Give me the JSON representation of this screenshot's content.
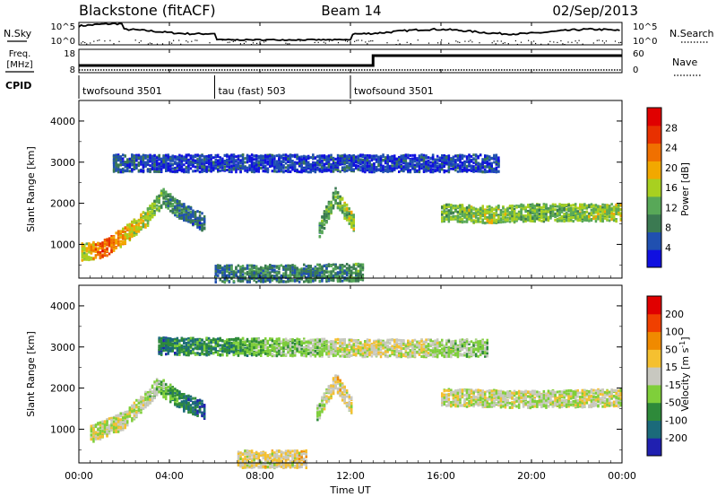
{
  "header": {
    "radar": "Blackstone (fitACF)",
    "beam": "Beam 14",
    "date": "02/Sep/2013"
  },
  "top_panels": {
    "nsky_label": "N.Sky",
    "nsearch_label": "N.Search",
    "freq_label_line1": "Freq.",
    "freq_label_line2": "[MHz]",
    "nave_label": "Nave",
    "cpid_label": "CPID",
    "noise_ticks_left": [
      "10^5",
      "10^0"
    ],
    "noise_ticks_right": [
      "10^5",
      "10^0"
    ],
    "freq_ticks_left": [
      "18",
      "8"
    ],
    "nave_ticks_right": [
      "60",
      "0"
    ],
    "cpid_segments": [
      {
        "label": "twofsound 3501",
        "start_hour": 0,
        "end_hour": 6
      },
      {
        "label": "tau (fast) 503",
        "start_hour": 6,
        "end_hour": 12
      },
      {
        "label": "twofsound 3501",
        "start_hour": 12,
        "end_hour": 24
      }
    ]
  },
  "x_axis": {
    "label": "Time UT",
    "ticks": [
      "00:00",
      "04:00",
      "08:00",
      "12:00",
      "16:00",
      "20:00",
      "00:00"
    ],
    "tick_hours": [
      0,
      4,
      8,
      12,
      16,
      20,
      24
    ],
    "range_hours": [
      0,
      24
    ]
  },
  "power_panel": {
    "ylabel": "Slant Range [km]",
    "yticks": [
      1000,
      2000,
      3000,
      4000
    ],
    "ylim": [
      180,
      4500
    ],
    "colorbar_label": "Power [dB]",
    "colorbar_ticks": [
      "28",
      "24",
      "20",
      "16",
      "12",
      "8",
      "4"
    ],
    "colors": [
      "#1010e0",
      "#2050b0",
      "#3b7a52",
      "#58a858",
      "#a8d020",
      "#f2a800",
      "#f07000",
      "#e83000",
      "#e00000"
    ]
  },
  "velocity_panel": {
    "ylabel": "Slant Range [km]",
    "yticks": [
      1000,
      2000,
      3000,
      4000
    ],
    "ylim": [
      180,
      4500
    ],
    "colorbar_label": "Velocity [m s^-1]",
    "colorbar_ticks": [
      "200",
      "100",
      "50",
      "15",
      "-15",
      "-50",
      "-100",
      "-200"
    ],
    "colors": [
      "#2020b0",
      "#1b6a7a",
      "#2e8a3a",
      "#7fcf3a",
      "#c8c8c0",
      "#f5c030",
      "#f08a00",
      "#f04000",
      "#e00000"
    ]
  },
  "chart_data": [
    {
      "type": "heatmap",
      "name": "power",
      "x_unit": "hour UT",
      "y_unit": "km",
      "value_unit": "dB",
      "value_range": [
        0,
        30
      ],
      "features": [
        {
          "label": "arc",
          "points": [
            [
              0.1,
              850,
              14
            ],
            [
              1,
              900,
              24
            ],
            [
              2,
              1250,
              18
            ],
            [
              3,
              1700,
              14
            ],
            [
              3.7,
              2200,
              10
            ],
            [
              4.3,
              1900,
              8
            ],
            [
              5.5,
              1550,
              6
            ]
          ]
        },
        {
          "label": "band_3000",
          "points": [
            [
              1.5,
              3000,
              6
            ],
            [
              4.5,
              3000,
              4
            ],
            [
              12.4,
              3000,
              4
            ],
            [
              18.5,
              3000,
              4
            ]
          ]
        },
        {
          "label": "blob",
          "points": [
            [
              10.6,
              1400,
              10
            ],
            [
              11.3,
              2200,
              12
            ],
            [
              12.1,
              1550,
              14
            ]
          ]
        },
        {
          "label": "band_1800",
          "points": [
            [
              16,
              1800,
              12
            ],
            [
              18,
              1750,
              14
            ],
            [
              20,
              1800,
              12
            ],
            [
              24,
              1800,
              14
            ]
          ]
        },
        {
          "label": "near_range",
          "points": [
            [
              6,
              320,
              8
            ],
            [
              9,
              320,
              8
            ],
            [
              12.5,
              350,
              10
            ]
          ]
        }
      ]
    },
    {
      "type": "heatmap",
      "name": "velocity",
      "x_unit": "hour UT",
      "y_unit": "km",
      "value_unit": "m/s",
      "value_range": [
        -250,
        250
      ],
      "features": [
        {
          "label": "arc",
          "points": [
            [
              0.5,
              900,
              0
            ],
            [
              2,
              1250,
              0
            ],
            [
              3.5,
              2100,
              -40
            ],
            [
              4.5,
              1700,
              -120
            ],
            [
              5.5,
              1500,
              -200
            ]
          ]
        },
        {
          "label": "band_3000",
          "points": [
            [
              3.5,
              3050,
              -150
            ],
            [
              13,
              3000,
              10
            ],
            [
              18,
              3000,
              -50
            ]
          ]
        },
        {
          "label": "blob",
          "points": [
            [
              10.5,
              1400,
              -60
            ],
            [
              11.3,
              2200,
              40
            ],
            [
              12,
              1600,
              0
            ]
          ]
        },
        {
          "label": "band_1800",
          "points": [
            [
              16,
              1800,
              0
            ],
            [
              20,
              1750,
              -10
            ],
            [
              24,
              1800,
              0
            ]
          ]
        },
        {
          "label": "near_range",
          "points": [
            [
              7,
              300,
              20
            ],
            [
              10,
              300,
              30
            ]
          ]
        }
      ]
    }
  ]
}
